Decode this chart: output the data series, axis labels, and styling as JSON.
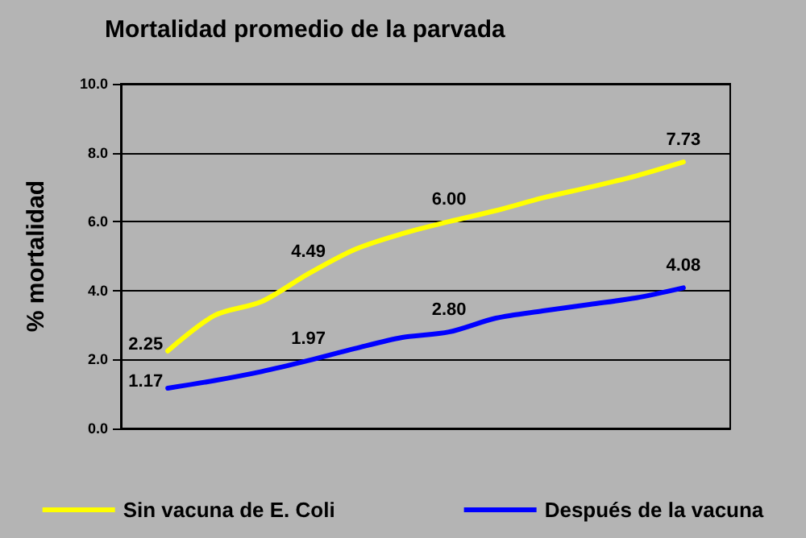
{
  "chart_data": {
    "type": "line",
    "title": "Mortalidad promedio de la parvada",
    "ylabel": "% mortalidad",
    "categories": [
      null,
      null,
      null,
      null,
      null,
      null,
      null,
      null,
      null,
      null,
      null,
      null,
      null,
      null
    ],
    "series": [
      {
        "name": "Sin vacuna de E. Coli",
        "color": "#ffff00",
        "values": [
          null,
          2.25,
          3.28,
          3.68,
          4.49,
          5.2,
          5.65,
          6.0,
          6.32,
          6.69,
          7.0,
          7.33,
          7.73,
          null
        ],
        "value_labels": [
          null,
          "2.25",
          null,
          null,
          "4.49",
          null,
          null,
          "6.00",
          null,
          null,
          null,
          null,
          "7.73",
          null
        ]
      },
      {
        "name": "Después de la vacuna",
        "color": "#0000ff",
        "values": [
          null,
          1.17,
          1.39,
          1.65,
          1.97,
          2.32,
          2.64,
          2.8,
          3.2,
          3.41,
          3.6,
          3.79,
          4.08,
          null
        ],
        "value_labels": [
          null,
          "1.17",
          null,
          null,
          "1.97",
          null,
          null,
          "2.80",
          null,
          null,
          null,
          null,
          "4.08",
          null
        ]
      }
    ],
    "ylim": [
      0,
      10
    ],
    "yticks": [
      {
        "value": 0,
        "label": "0.0"
      },
      {
        "value": 2,
        "label": "2.0"
      },
      {
        "value": 4,
        "label": "4.0"
      },
      {
        "value": 6,
        "label": "6.0"
      },
      {
        "value": 8,
        "label": "8.0"
      },
      {
        "value": 10,
        "label": "10.0"
      }
    ],
    "grid": "y",
    "legend": "bottom",
    "marker": "none",
    "line_style": "solid"
  }
}
